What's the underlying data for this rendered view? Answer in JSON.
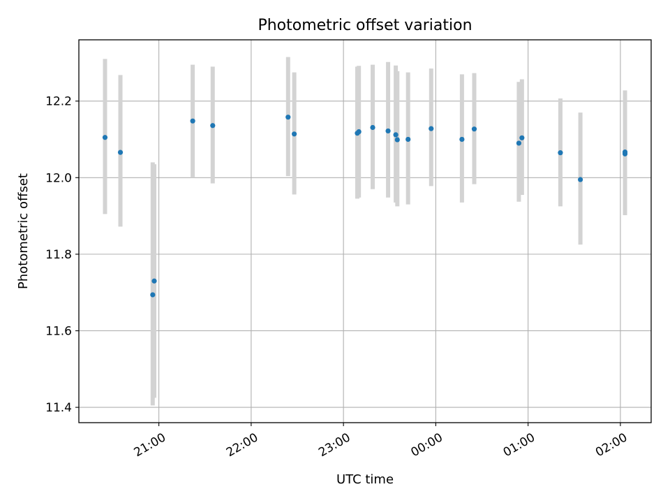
{
  "chart_data": {
    "type": "scatter",
    "title": "Photometric offset variation",
    "xlabel": "UTC time",
    "ylabel": "Photometric offset",
    "x_axis": "time",
    "xlim": [
      "20:08",
      "02:20"
    ],
    "ylim": [
      11.36,
      12.36
    ],
    "xticks": [
      "21:00",
      "22:00",
      "23:00",
      "00:00",
      "01:00",
      "02:00"
    ],
    "yticks": [
      11.4,
      11.6,
      11.8,
      12.0,
      12.2
    ],
    "grid": true,
    "legend": "none",
    "point_color": "#1f77b4",
    "errorbar_color": "#d3d3d3",
    "points": [
      {
        "x": "20:25",
        "y": 12.105,
        "lo": 11.905,
        "hi": 12.31
      },
      {
        "x": "20:35",
        "y": 12.066,
        "lo": 11.872,
        "hi": 12.268
      },
      {
        "x": "20:56",
        "y": 11.694,
        "lo": 11.405,
        "hi": 12.04
      },
      {
        "x": "20:57",
        "y": 11.73,
        "lo": 11.425,
        "hi": 12.035
      },
      {
        "x": "21:22",
        "y": 12.148,
        "lo": 12.0,
        "hi": 12.295
      },
      {
        "x": "21:35",
        "y": 12.136,
        "lo": 11.985,
        "hi": 12.29
      },
      {
        "x": "22:24",
        "y": 12.158,
        "lo": 12.004,
        "hi": 12.315
      },
      {
        "x": "22:28",
        "y": 12.114,
        "lo": 11.956,
        "hi": 12.275
      },
      {
        "x": "23:09",
        "y": 12.116,
        "lo": 11.945,
        "hi": 12.29
      },
      {
        "x": "23:10",
        "y": 12.12,
        "lo": 11.948,
        "hi": 12.292
      },
      {
        "x": "23:19",
        "y": 12.131,
        "lo": 11.97,
        "hi": 12.295
      },
      {
        "x": "23:29",
        "y": 12.122,
        "lo": 11.948,
        "hi": 12.302
      },
      {
        "x": "23:34",
        "y": 12.112,
        "lo": 11.935,
        "hi": 12.293
      },
      {
        "x": "23:35",
        "y": 12.099,
        "lo": 11.925,
        "hi": 12.278
      },
      {
        "x": "23:42",
        "y": 12.1,
        "lo": 11.93,
        "hi": 12.275
      },
      {
        "x": "23:57",
        "y": 12.128,
        "lo": 11.978,
        "hi": 12.285
      },
      {
        "x": "00:17",
        "y": 12.1,
        "lo": 11.935,
        "hi": 12.27
      },
      {
        "x": "00:25",
        "y": 12.127,
        "lo": 11.983,
        "hi": 12.273
      },
      {
        "x": "00:54",
        "y": 12.09,
        "lo": 11.937,
        "hi": 12.25
      },
      {
        "x": "00:56",
        "y": 12.104,
        "lo": 11.955,
        "hi": 12.257
      },
      {
        "x": "01:21",
        "y": 12.065,
        "lo": 11.925,
        "hi": 12.207
      },
      {
        "x": "01:34",
        "y": 11.995,
        "lo": 11.825,
        "hi": 12.17
      },
      {
        "x": "02:03",
        "y": 12.062,
        "lo": 11.902,
        "hi": 12.228
      },
      {
        "x": "02:03",
        "y": 12.067,
        "lo": 11.91,
        "hi": 12.225
      }
    ]
  }
}
